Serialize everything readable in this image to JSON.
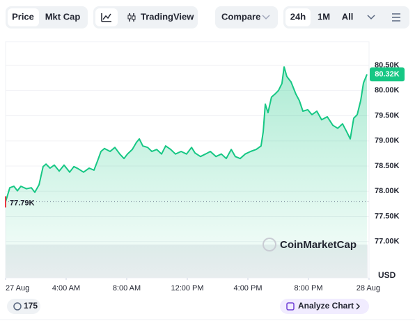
{
  "ui": {
    "price_tab": "Price",
    "mktcap_tab": "Mkt Cap",
    "tradingview": "TradingView",
    "compare": "Compare",
    "range_24h": "24h",
    "range_1m": "1M",
    "range_all": "All",
    "currency": "USD",
    "watermark": "CoinMarketCap",
    "comments_count": "175",
    "analyze": "Analyze Chart"
  },
  "chart_data": {
    "type": "line",
    "color": "#16c784",
    "x": [
      0,
      0.28,
      0.55,
      0.78,
      1.01,
      1.38,
      1.7,
      1.93,
      2.21,
      2.48,
      2.67,
      2.94,
      3.22,
      3.54,
      3.86,
      4.23,
      4.51,
      4.78,
      5.15,
      5.52,
      5.84,
      6.07,
      6.3,
      6.53,
      6.9,
      7.22,
      7.54,
      7.82,
      8.05,
      8.37,
      8.64,
      8.83,
      9.06,
      9.38,
      9.66,
      9.98,
      10.3,
      10.57,
      10.9,
      11.22,
      11.59,
      11.95,
      12.28,
      12.51,
      12.87,
      13.2,
      13.52,
      13.89,
      14.25,
      14.57,
      14.9,
      15.17,
      15.49,
      15.82,
      16.18,
      16.55,
      16.87,
      17.01,
      17.15,
      17.33,
      17.56,
      17.79,
      18.02,
      18.25,
      18.39,
      18.57,
      18.85,
      19.17,
      19.4,
      19.63,
      19.95,
      20.23,
      20.55,
      20.87,
      21.24,
      21.61,
      21.93,
      22.25,
      22.53,
      22.76,
      22.99,
      23.22,
      23.45,
      23.63,
      23.86
    ],
    "values": [
      77790,
      78070,
      78100,
      78010,
      78100,
      78050,
      78070,
      77980,
      78130,
      78490,
      78540,
      78460,
      78520,
      78400,
      78520,
      78380,
      78490,
      78450,
      78380,
      78460,
      78420,
      78600,
      78790,
      78850,
      78790,
      78870,
      78740,
      78650,
      78740,
      78830,
      78970,
      79040,
      78900,
      78870,
      78790,
      78830,
      78740,
      78900,
      78830,
      78740,
      78790,
      78740,
      78870,
      78760,
      78690,
      78740,
      78790,
      78690,
      78740,
      78650,
      78830,
      78690,
      78650,
      78740,
      78790,
      78830,
      78900,
      79180,
      79730,
      79560,
      79870,
      79930,
      80000,
      80140,
      80470,
      80280,
      80170,
      79930,
      79800,
      79590,
      79620,
      79520,
      79590,
      79420,
      79480,
      79310,
      79250,
      79340,
      79180,
      79040,
      79450,
      79520,
      79800,
      80150,
      80320
    ],
    "xlim": [
      0,
      24
    ],
    "xticks": [
      {
        "value": 0,
        "label": "27 Aug"
      },
      {
        "value": 4,
        "label": "4:00 AM"
      },
      {
        "value": 8,
        "label": "8:00 AM"
      },
      {
        "value": 12,
        "label": "12:00 PM"
      },
      {
        "value": 16,
        "label": "4:00 PM"
      },
      {
        "value": 20,
        "label": "8:00 PM"
      },
      {
        "value": 24,
        "label": "28 Aug"
      }
    ],
    "ylim": [
      76280,
      80970
    ],
    "yticks": [
      {
        "value": 77000,
        "label": "77.00K"
      },
      {
        "value": 77500,
        "label": "77.50K"
      },
      {
        "value": 78000,
        "label": "78.00K"
      },
      {
        "value": 78500,
        "label": "78.50K"
      },
      {
        "value": 79000,
        "label": "79.00K"
      },
      {
        "value": 79500,
        "label": "79.50K"
      },
      {
        "value": 80000,
        "label": "80.00K"
      },
      {
        "value": 80500,
        "label": "80.50K"
      }
    ],
    "grid": true,
    "open_price": {
      "value": 77790,
      "label": "77.79K"
    },
    "current_price": {
      "value": 80320,
      "label": "80.32K"
    }
  }
}
